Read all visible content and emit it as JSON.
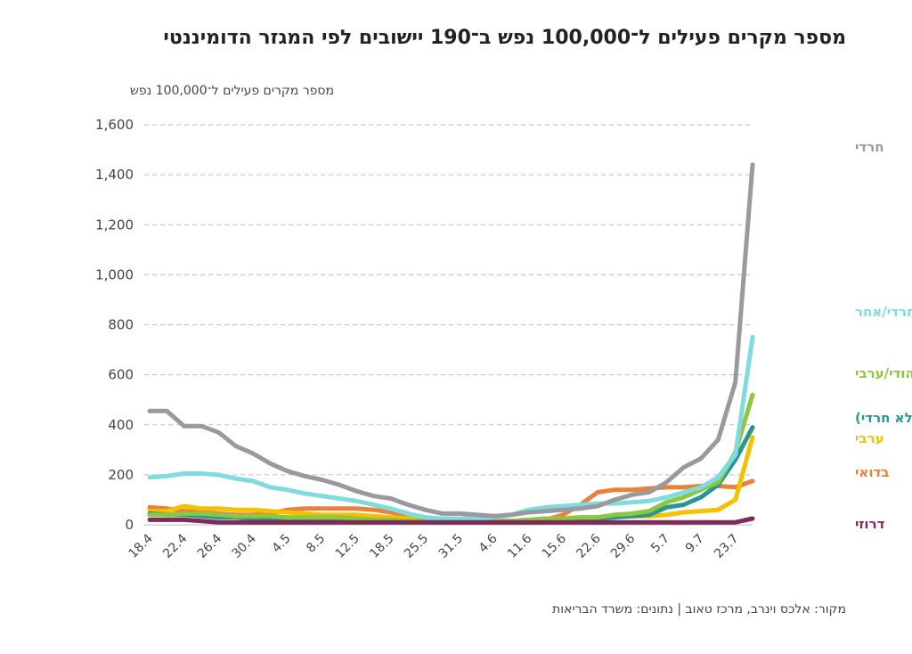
{
  "title": "מספר מקרים פעילים ל־100,000 נפש ב־190 יישובים לפי המגזר הדומיננטי",
  "source": "מקור: אלכס וינרב, מרכז טאוב | נתונים: משרד הבריאות",
  "chart_data": {
    "type": "line",
    "title": "מספר מקרים פעילים ל־100,000 נפש ב־190 יישובים לפי המגזר הדומיננטי",
    "ylabel": "מספר מקרים פעילים ל־100,000 נפש",
    "ylim": [
      0,
      1600
    ],
    "yticks": [
      "0",
      "200",
      "400",
      "600",
      "800",
      "1,000",
      "1,200",
      "1,400",
      "1,600"
    ],
    "ytick_values": [
      0,
      200,
      400,
      600,
      800,
      1000,
      1200,
      1400,
      1600
    ],
    "grid": "horizontal dashed",
    "x_tick_labels": [
      "18.4",
      "22.4",
      "26.4",
      "30.4",
      "4.5",
      "8.5",
      "12.5",
      "18.5",
      "25.5",
      "31.5",
      "4.6",
      "11.6",
      "15.6",
      "22.6",
      "29.6",
      "5.7",
      "9.7",
      "23.7"
    ],
    "x_tick_positions": [
      0,
      2,
      4,
      6,
      8,
      10,
      12,
      14,
      16,
      18,
      20,
      22,
      24,
      26,
      28,
      30,
      32,
      34
    ],
    "x_count": 36,
    "legend": "series labels at line ends (right)",
    "series": [
      {
        "name": "בדואי",
        "color": "#e8823a",
        "values": [
          70,
          65,
          55,
          50,
          45,
          40,
          40,
          45,
          60,
          65,
          65,
          65,
          65,
          60,
          50,
          35,
          20,
          15,
          15,
          15,
          15,
          15,
          15,
          20,
          40,
          80,
          130,
          140,
          140,
          145,
          150,
          150,
          155,
          155,
          150,
          175
        ]
      },
      {
        "name": "ערבי",
        "color": "#f2c200",
        "values": [
          55,
          55,
          75,
          65,
          65,
          60,
          60,
          55,
          50,
          45,
          40,
          40,
          40,
          35,
          30,
          25,
          20,
          15,
          10,
          10,
          10,
          10,
          10,
          10,
          15,
          20,
          25,
          30,
          35,
          35,
          40,
          50,
          55,
          60,
          100,
          350
        ]
      },
      {
        "name": "יהודי (לא חרדי)",
        "color": "#2a9595",
        "values": [
          45,
          40,
          40,
          35,
          30,
          30,
          25,
          20,
          20,
          20,
          15,
          15,
          15,
          15,
          10,
          10,
          10,
          10,
          10,
          10,
          10,
          10,
          10,
          10,
          15,
          20,
          25,
          30,
          35,
          40,
          70,
          80,
          110,
          160,
          260,
          390
        ]
      },
      {
        "name": "מעורב יהודי/ערבי",
        "color": "#8dc63f",
        "values": [
          40,
          40,
          45,
          45,
          40,
          35,
          35,
          35,
          30,
          30,
          30,
          30,
          25,
          20,
          20,
          15,
          15,
          15,
          15,
          15,
          15,
          15,
          20,
          25,
          25,
          30,
          30,
          40,
          45,
          55,
          90,
          110,
          140,
          170,
          290,
          520
        ]
      },
      {
        "name": "מעורב חרדי/אחר",
        "color": "#7fdbde",
        "values": [
          190,
          195,
          205,
          205,
          200,
          185,
          175,
          150,
          140,
          125,
          115,
          105,
          95,
          80,
          65,
          45,
          30,
          25,
          25,
          25,
          30,
          40,
          60,
          70,
          75,
          80,
          85,
          85,
          90,
          95,
          110,
          130,
          150,
          190,
          280,
          750
        ]
      },
      {
        "name": "חרדי",
        "color": "#9a9a9e",
        "values": [
          455,
          455,
          395,
          395,
          370,
          315,
          285,
          245,
          215,
          195,
          180,
          160,
          135,
          115,
          105,
          80,
          60,
          45,
          45,
          40,
          35,
          40,
          50,
          55,
          60,
          65,
          75,
          100,
          120,
          130,
          170,
          230,
          265,
          340,
          570,
          1440
        ]
      },
      {
        "name": "דרוזי",
        "color": "#7e2b5a",
        "values": [
          20,
          20,
          20,
          15,
          10,
          10,
          10,
          10,
          10,
          10,
          10,
          10,
          10,
          10,
          10,
          10,
          10,
          10,
          10,
          10,
          10,
          10,
          10,
          10,
          10,
          10,
          10,
          10,
          10,
          10,
          10,
          10,
          10,
          10,
          10,
          25
        ]
      }
    ]
  }
}
